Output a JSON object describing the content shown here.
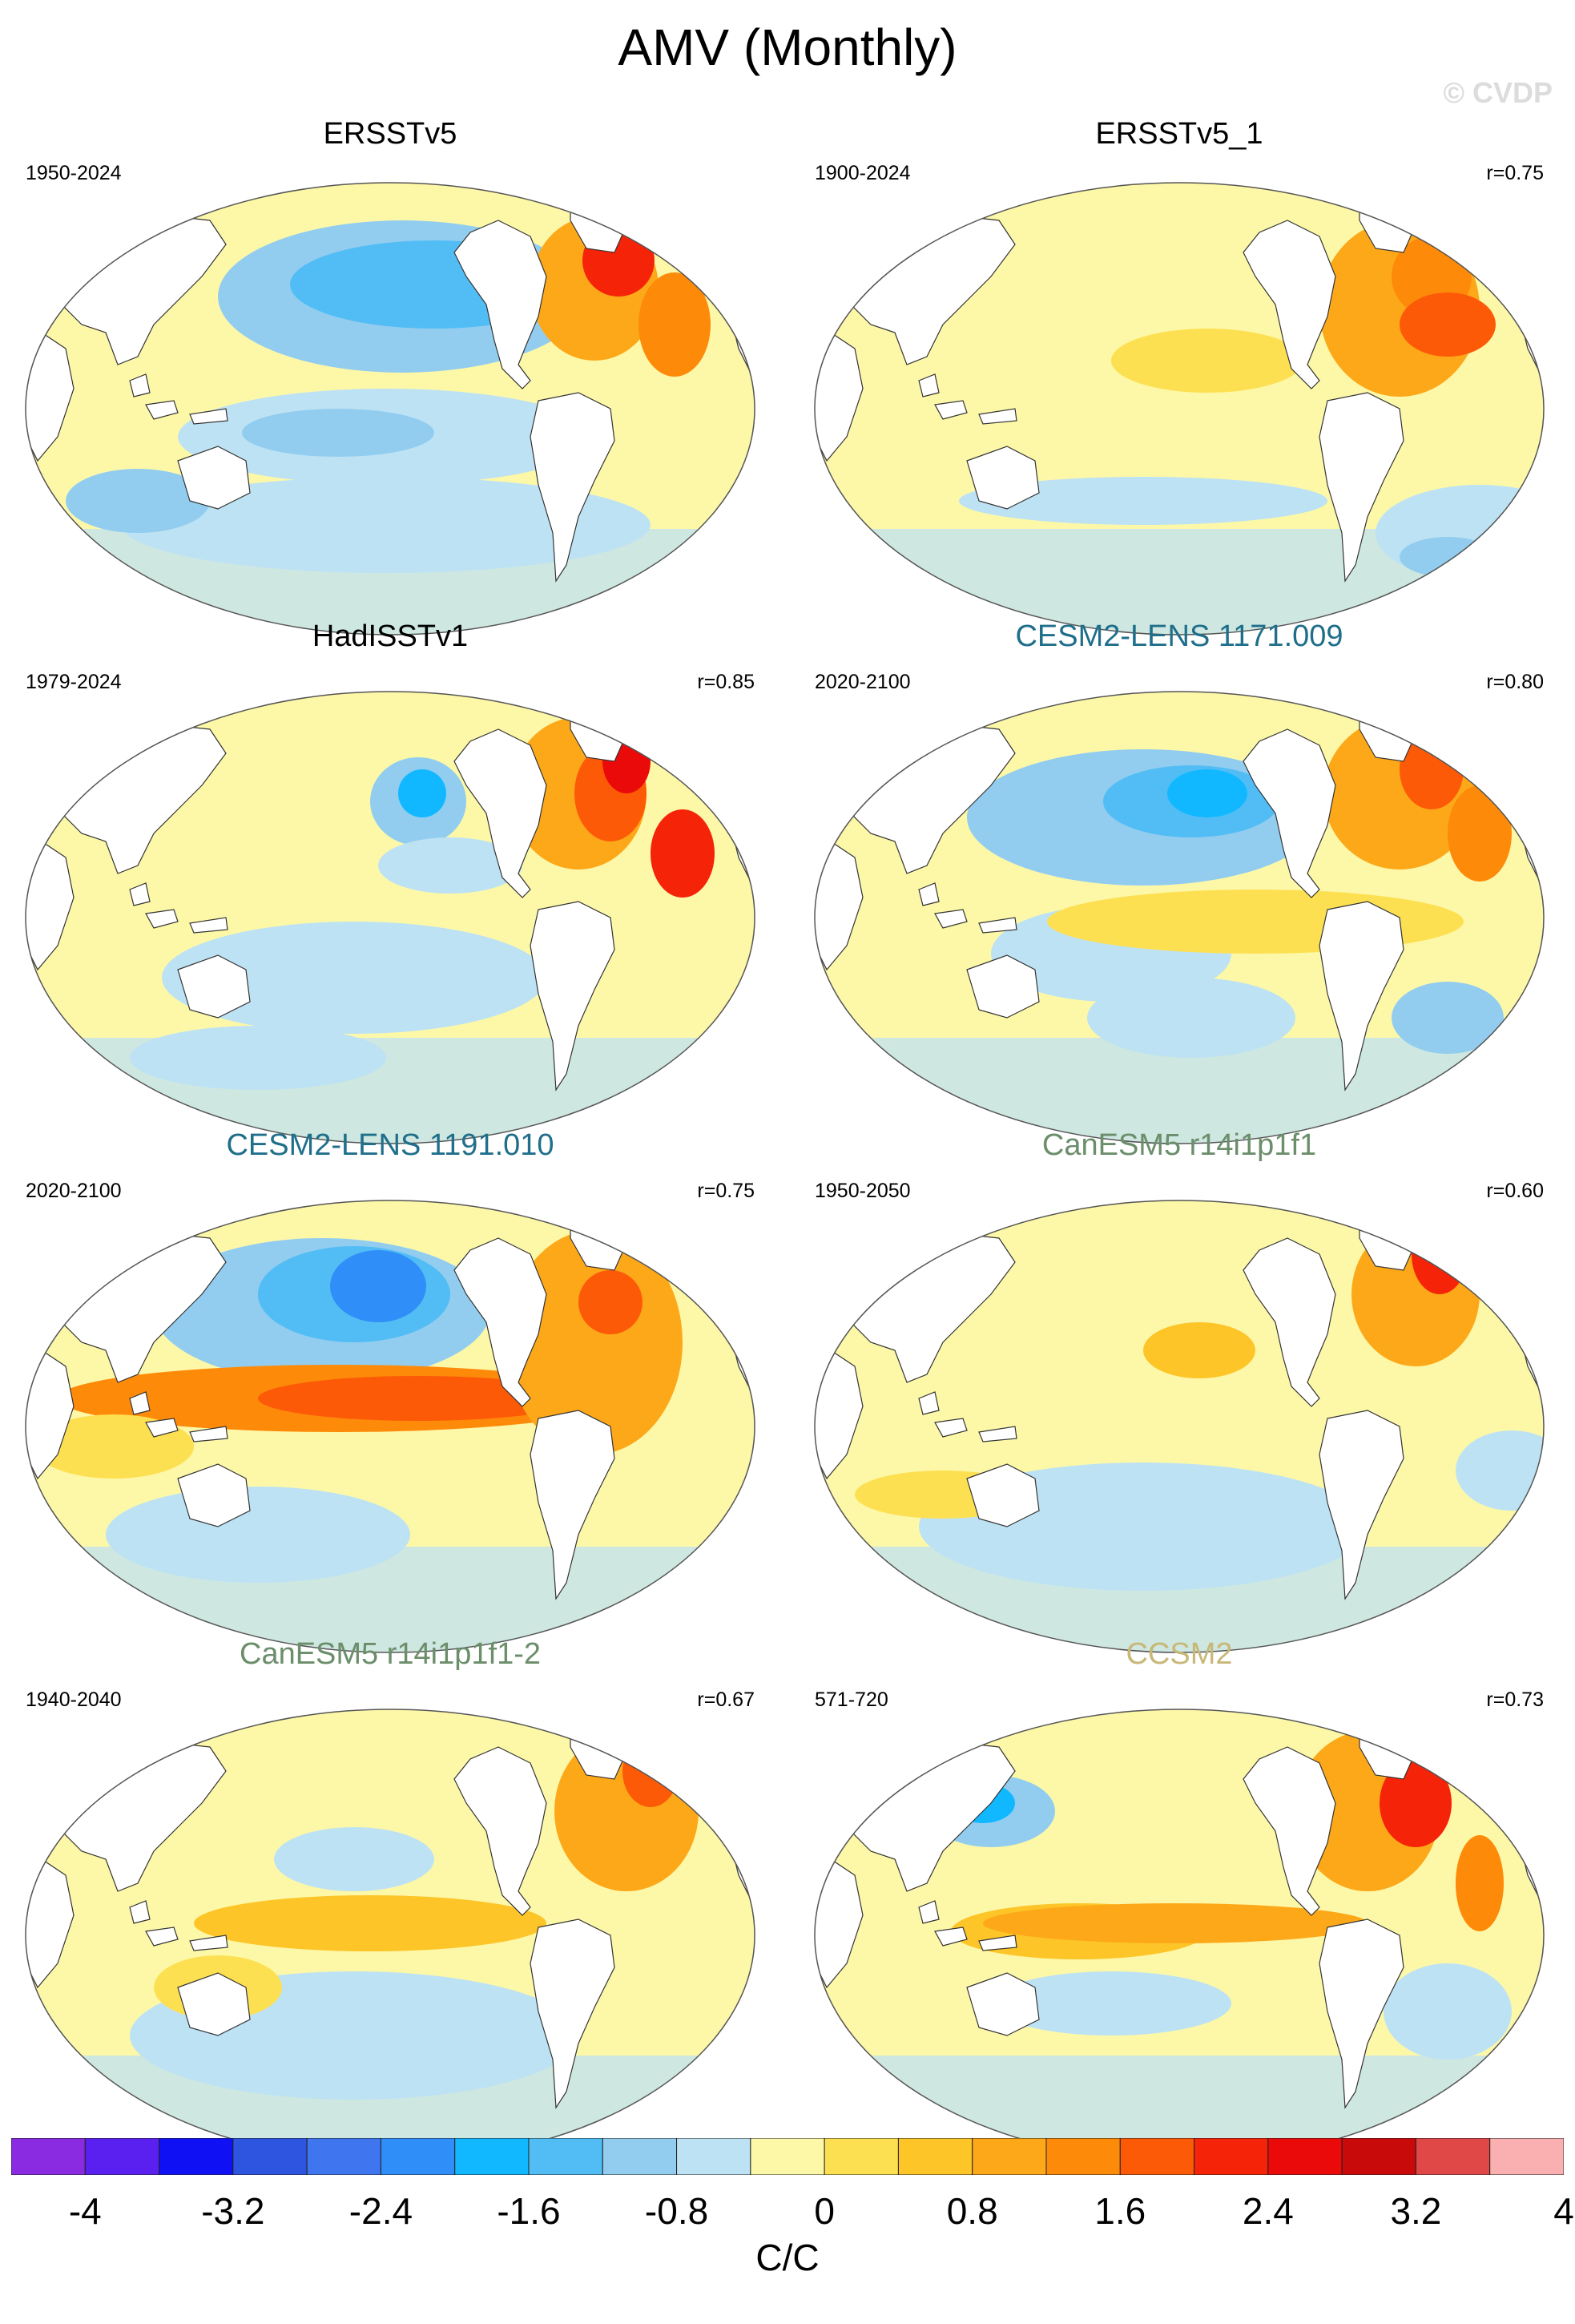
{
  "title": "AMV (Monthly)",
  "watermark": "© CVDP",
  "panels": [
    {
      "name": "ERSSTv5",
      "period": "1950-2024",
      "r": "",
      "title_color": "#000000"
    },
    {
      "name": "ERSSTv5_1",
      "period": "1900-2024",
      "r": "r=0.75",
      "title_color": "#000000"
    },
    {
      "name": "HadISSTv1",
      "period": "1979-2024",
      "r": "r=0.85",
      "title_color": "#000000"
    },
    {
      "name": "CESM2-LENS 1171.009",
      "period": "2020-2100",
      "r": "r=0.80",
      "title_color": "#1f6f8b"
    },
    {
      "name": "CESM2-LENS 1191.010",
      "period": "2020-2100",
      "r": "r=0.75",
      "title_color": "#1f6f8b"
    },
    {
      "name": "CanESM5 r14i1p1f1",
      "period": "1950-2050",
      "r": "r=0.60",
      "title_color": "#6b8e6b"
    },
    {
      "name": "CanESM5 r14i1p1f1-2",
      "period": "1940-2040",
      "r": "r=0.67",
      "title_color": "#6b8e6b"
    },
    {
      "name": "CCSM2",
      "period": "571-720",
      "r": "r=0.73",
      "title_color": "#c8b878"
    }
  ],
  "colorbar": {
    "colors": [
      "#8a2be2",
      "#5a20f0",
      "#1010f5",
      "#2e55e0",
      "#3f75ee",
      "#2f8ef8",
      "#12b8ff",
      "#52bdf5",
      "#92cdf0",
      "#bde2f4",
      "#fdf8a8",
      "#fde052",
      "#fdc528",
      "#fda818",
      "#fd8a08",
      "#fd5a08",
      "#f52308",
      "#ea0a0a",
      "#c80a0a",
      "#e04848",
      "#fab0b0"
    ],
    "ticks": [
      "-4",
      "-3.2",
      "-2.4",
      "-1.6",
      "-0.8",
      "0",
      "0.8",
      "1.6",
      "2.4",
      "3.2",
      "4"
    ],
    "units": "C/C"
  }
}
